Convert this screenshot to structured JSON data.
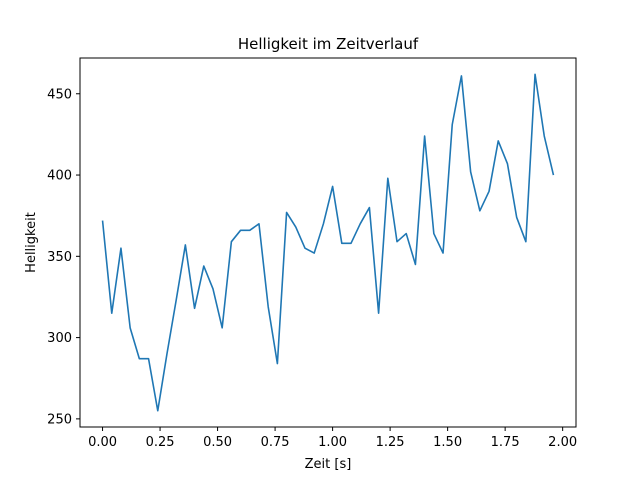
{
  "chart_data": {
    "type": "line",
    "title": "Helligkeit im Zeitverlauf",
    "xlabel": "Zeit [s]",
    "ylabel": "Helligkeit",
    "xlim": [
      -0.098,
      2.058
    ],
    "ylim": [
      245,
      472
    ],
    "xticks": [
      0.0,
      0.25,
      0.5,
      0.75,
      1.0,
      1.25,
      1.5,
      1.75,
      2.0
    ],
    "xtick_labels": [
      "0.00",
      "0.25",
      "0.50",
      "0.75",
      "1.00",
      "1.25",
      "1.50",
      "1.75",
      "2.00"
    ],
    "yticks": [
      250,
      300,
      350,
      400,
      450
    ],
    "ytick_labels": [
      "250",
      "300",
      "350",
      "400",
      "450"
    ],
    "grid": false,
    "legend": "none",
    "series": [
      {
        "color": "#1f77b4",
        "x": [
          0.0,
          0.04,
          0.08,
          0.12,
          0.16,
          0.2,
          0.24,
          0.28,
          0.32,
          0.36,
          0.4,
          0.44,
          0.48,
          0.52,
          0.56,
          0.6,
          0.64,
          0.68,
          0.72,
          0.76,
          0.8,
          0.84,
          0.88,
          0.92,
          0.96,
          1.0,
          1.04,
          1.08,
          1.12,
          1.16,
          1.2,
          1.24,
          1.28,
          1.32,
          1.36,
          1.4,
          1.44,
          1.48,
          1.52,
          1.56,
          1.6,
          1.64,
          1.68,
          1.72,
          1.76,
          1.8,
          1.84,
          1.88,
          1.92,
          1.96
        ],
        "values": [
          372,
          315,
          355,
          306,
          287,
          287,
          255,
          290,
          323,
          357,
          318,
          344,
          330,
          306,
          359,
          366,
          366,
          370,
          319,
          284,
          377,
          368,
          355,
          352,
          370,
          393,
          358,
          358,
          370,
          380,
          315,
          398,
          359,
          364,
          345,
          424,
          364,
          352,
          431,
          461,
          402,
          378,
          390,
          421,
          407,
          374,
          359,
          462,
          424,
          400
        ]
      }
    ]
  }
}
